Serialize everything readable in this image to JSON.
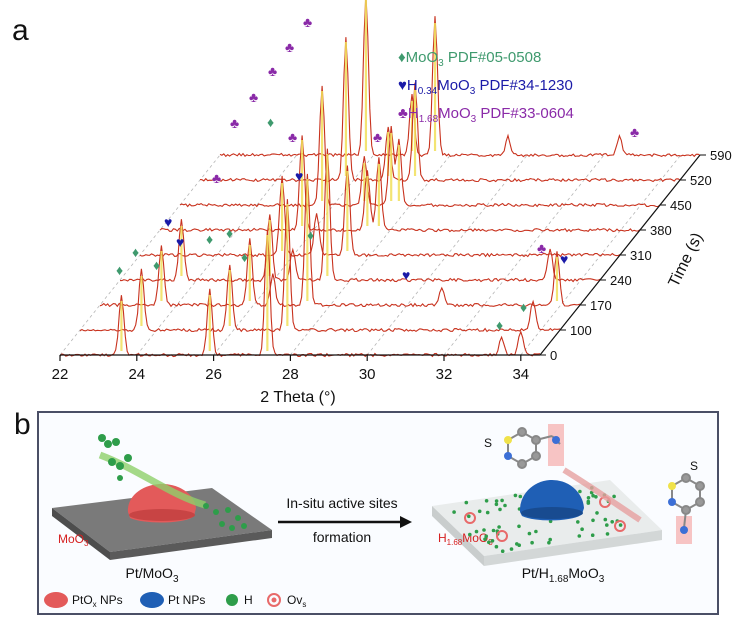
{
  "panel_a": {
    "letter": "a",
    "xlabel": "2 Theta (°)",
    "ylabel": "Time (s)",
    "x_ticks": [
      "22",
      "24",
      "26",
      "28",
      "30",
      "32",
      "34"
    ],
    "time_ticks": [
      "0",
      "100",
      "170",
      "240",
      "310",
      "380",
      "450",
      "520",
      "590"
    ],
    "legend": [
      {
        "symbol": "♦",
        "prefix": "MoO",
        "sub": "3",
        "suffix": " PDF#05-0508",
        "color": "#3f9a6e"
      },
      {
        "symbol": "♥",
        "prefix": "H",
        "sub": "0.34",
        "prefix2": "MoO",
        "sub2": "3",
        "suffix": " PDF#34-1230",
        "color": "#1a1aa8"
      },
      {
        "symbol": "♣",
        "prefix": "H",
        "sub": "1.68",
        "prefix2": "MoO",
        "sub2": "3",
        "suffix": " PDF#33-0604",
        "color": "#8a2aa8"
      }
    ]
  },
  "chart_data": {
    "type": "line",
    "title": "",
    "xlabel": "2 Theta (°)",
    "ylabel": "Time (s)",
    "xlim": [
      22,
      34.5
    ],
    "z_values": [
      0,
      100,
      170,
      240,
      310,
      380,
      450,
      520,
      590
    ],
    "series": [
      {
        "name": "0",
        "peaks": [
          [
            23.6,
            1.0
          ],
          [
            25.9,
            1.1
          ],
          [
            27.4,
            2.1
          ],
          [
            33.5,
            0.3
          ],
          [
            34.0,
            0.4
          ]
        ]
      },
      {
        "name": "100",
        "peaks": [
          [
            23.6,
            1.0
          ],
          [
            25.9,
            1.1
          ],
          [
            27.4,
            2.2
          ],
          [
            33.8,
            0.5
          ]
        ]
      },
      {
        "name": "170",
        "peaks": [
          [
            23.6,
            1.0
          ],
          [
            25.9,
            1.1
          ],
          [
            26.5,
            0.5
          ],
          [
            27.4,
            2.2
          ],
          [
            30.9,
            0.3
          ],
          [
            33.9,
            0.9
          ]
        ]
      },
      {
        "name": "240",
        "peaks": [
          [
            23.6,
            1.0
          ],
          [
            25.9,
            1.1
          ],
          [
            26.5,
            0.5
          ],
          [
            27.4,
            2.2
          ],
          [
            33.2,
            0.5
          ]
        ]
      },
      {
        "name": "310",
        "peaks": [
          [
            25.7,
            1.3
          ],
          [
            26.6,
            0.7
          ],
          [
            27.4,
            1.5
          ]
        ]
      },
      {
        "name": "380",
        "peaks": [
          [
            25.7,
            1.6
          ],
          [
            27.4,
            1.0
          ],
          [
            27.7,
            1.2
          ]
        ]
      },
      {
        "name": "450",
        "peaks": [
          [
            25.7,
            2.0
          ],
          [
            26.8,
            0.8
          ],
          [
            27.5,
            1.3
          ],
          [
            27.7,
            1.1
          ]
        ]
      },
      {
        "name": "520",
        "peaks": [
          [
            25.8,
            2.4
          ],
          [
            26.9,
            0.9
          ],
          [
            27.6,
            1.6
          ]
        ]
      },
      {
        "name": "590",
        "peaks": [
          [
            25.8,
            2.7
          ],
          [
            27.0,
            1.0
          ],
          [
            27.6,
            2.3
          ],
          [
            29.5,
            0.3
          ],
          [
            32.4,
            0.3
          ]
        ]
      }
    ],
    "grid": false
  },
  "panel_b": {
    "letter": "b",
    "left_label_prefix": "Pt/MoO",
    "left_label_sub": "3",
    "right_label_prefix": "Pt/H",
    "right_label_sub": "1.68",
    "right_label_mid": "MoO",
    "right_label_sub2": "3",
    "arrow_top": "In-situ active sites",
    "arrow_bottom": "formation",
    "moo3_tag_prefix": "MoO",
    "moo3_tag_sub": "3",
    "hmoo3_tag_prefix": "H",
    "hmoo3_tag_sub": "1.68",
    "hmoo3_tag_mid": "MoO",
    "hmoo3_tag_sub2": "3",
    "sulfur_label": "S",
    "legend": {
      "pto_prefix": "PtO",
      "pto_sub": "x",
      "pto_suffix": " NPs",
      "pt": "Pt NPs",
      "h": "H",
      "ov_prefix": "Ov",
      "ov_sub": "s"
    },
    "colors": {
      "ptox": "#e35a5a",
      "pt": "#1f5fb5",
      "h": "#2e9d4a",
      "ov": "#e86a6a",
      "support_dark": "#6b6b6b",
      "support_light": "#e9ecec"
    }
  }
}
